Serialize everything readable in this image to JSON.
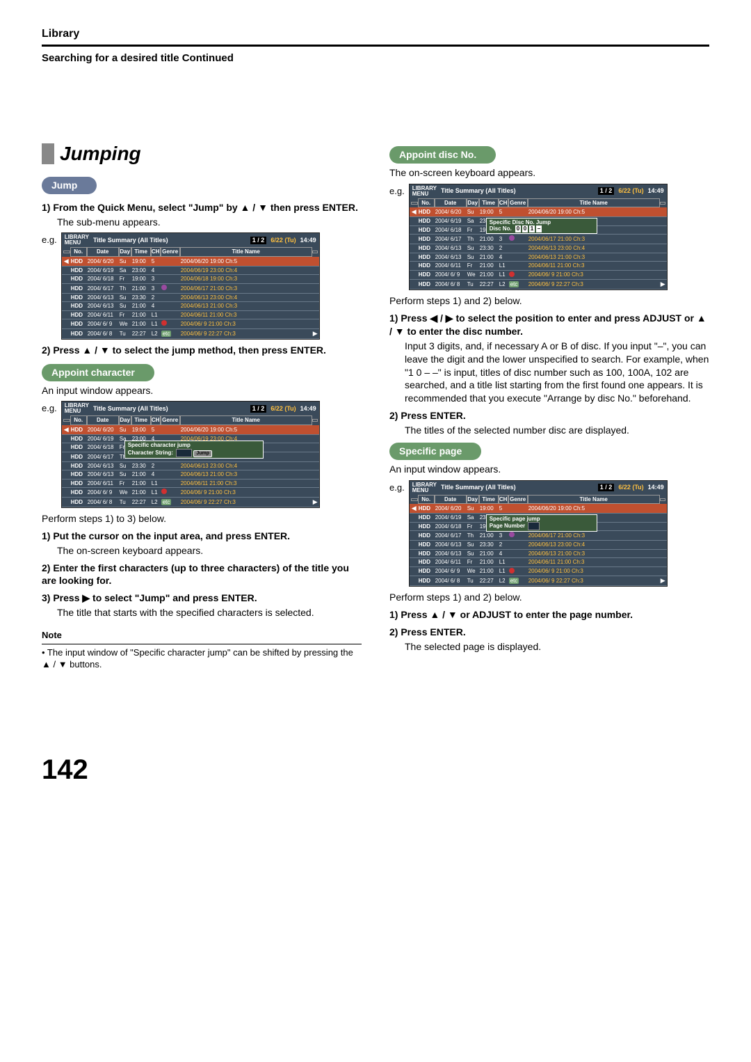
{
  "header": {
    "section": "Library",
    "subtitle": "Searching for a desired title Continued"
  },
  "page_number": "142",
  "left": {
    "main_title": "Jumping",
    "jump_pill": "Jump",
    "step1": "1) From the Quick Menu, select \"Jump\" by ▲ / ▼ then press ENTER.",
    "step1_body": "The sub-menu appears.",
    "step2": "2) Press ▲ / ▼ to select the jump method, then press ENTER.",
    "char_pill": "Appoint character",
    "char_body": "An input window appears.",
    "char_overlay_title": "Specific character jump",
    "char_overlay_label": "Character String:",
    "char_overlay_btn": "Jump",
    "below1": "Perform steps 1) to 3) below.",
    "below1_s1": "1) Put the cursor on the input area, and press ENTER.",
    "below1_s1b": "The on-screen keyboard appears.",
    "below1_s2": "2) Enter the first characters (up to three characters) of the title you are looking for.",
    "below1_s3": "3) Press ▶ to select \"Jump\" and press ENTER.",
    "below1_s3b": "The title that starts with the specified characters is selected.",
    "note_title": "Note",
    "note_body": "• The input window of \"Specific character jump\" can be shifted by pressing the ▲ / ▼ buttons."
  },
  "right": {
    "disc_pill": "Appoint disc No.",
    "disc_body": "The on-screen keyboard appears.",
    "disc_overlay_title": "Specific Disc No. Jump",
    "disc_overlay_label": "Disc No.",
    "disc_digits": [
      "0",
      "0",
      "1"
    ],
    "below2": "Perform steps 1) and 2) below.",
    "below2_s1": "1) Press ◀ / ▶ to select the position to enter and press ADJUST or ▲ / ▼ to enter the disc number.",
    "below2_s1b": "Input 3 digits, and, if necessary A or B of disc. If you input \"–\", you can leave the digit and the lower unspecified to search. For example, when \"1 0 – –\" is input, titles of disc number such as 100, 100A, 102 are searched, and a title list starting from the first found one appears. It is recommended that you execute \"Arrange by disc No.\" beforehand.",
    "below2_s2": "2) Press ENTER.",
    "below2_s2b": "The titles of the selected number disc are displayed.",
    "page_pill": "Specific page",
    "page_body": "An input window appears.",
    "page_overlay_title": "Specific page jump",
    "page_overlay_label": "Page Number",
    "below3": "Perform steps 1) and 2) below.",
    "below3_s1": "1) Press ▲ / ▼ or ADJUST to enter the page number.",
    "below3_s2": "2) Press ENTER.",
    "below3_s2b": "The selected page is displayed."
  },
  "mini": {
    "menu1": "LIBRARY",
    "menu2": "MENU",
    "title": "Title Summary (All Titles)",
    "page": "1 / 2",
    "date": "6/22 (Tu)",
    "time": "14:49",
    "head": {
      "no": "No.",
      "date": "Date",
      "day": "Day",
      "time": "Time",
      "ch": "CH",
      "genre": "Genre",
      "tname": "Title Name"
    },
    "rows": [
      {
        "m": "HDD",
        "d": "2004/ 6/20",
        "dy": "Su",
        "t": "19:00",
        "c": "5",
        "g": "",
        "tn": "2004/06/20  19:00 Ch:5",
        "sel": true
      },
      {
        "m": "HDD",
        "d": "2004/ 6/19",
        "dy": "Sa",
        "t": "23:00",
        "c": "4",
        "g": "",
        "tn": "2004/06/19  23:00 Ch:4"
      },
      {
        "m": "HDD",
        "d": "2004/ 6/18",
        "dy": "Fr",
        "t": "19:00",
        "c": "3",
        "g": "",
        "tn": "2004/06/18  19:00 Ch:3"
      },
      {
        "m": "HDD",
        "d": "2004/ 6/17",
        "dy": "Th",
        "t": "21:00",
        "c": "3",
        "g": "●",
        "gc": "#9a4aa0",
        "tn": "2004/06/17  21:00 Ch:3"
      },
      {
        "m": "HDD",
        "d": "2004/ 6/13",
        "dy": "Su",
        "t": "23:30",
        "c": "2",
        "g": "",
        "tn": "2004/06/13  23:00 Ch:4"
      },
      {
        "m": "HDD",
        "d": "2004/ 6/13",
        "dy": "Su",
        "t": "21:00",
        "c": "4",
        "g": "",
        "tn": "2004/06/13  21:00 Ch:3"
      },
      {
        "m": "HDD",
        "d": "2004/ 6/11",
        "dy": "Fr",
        "t": "21:00",
        "c": "L1",
        "g": "",
        "tn": "2004/06/11  21:00 Ch:3"
      },
      {
        "m": "HDD",
        "d": "2004/ 6/ 9",
        "dy": "We",
        "t": "21:00",
        "c": "L1",
        "g": "●",
        "gc": "#d03030",
        "tn": "2004/06/ 9  21:00 Ch:3"
      },
      {
        "m": "HDD",
        "d": "2004/ 6/ 8",
        "dy": "Tu",
        "t": "22:27",
        "c": "L2",
        "g": "etc",
        "gc": "#70a070",
        "tn": "2004/06/ 9  22:27 Ch:3"
      }
    ]
  },
  "eg_label": "e.g."
}
